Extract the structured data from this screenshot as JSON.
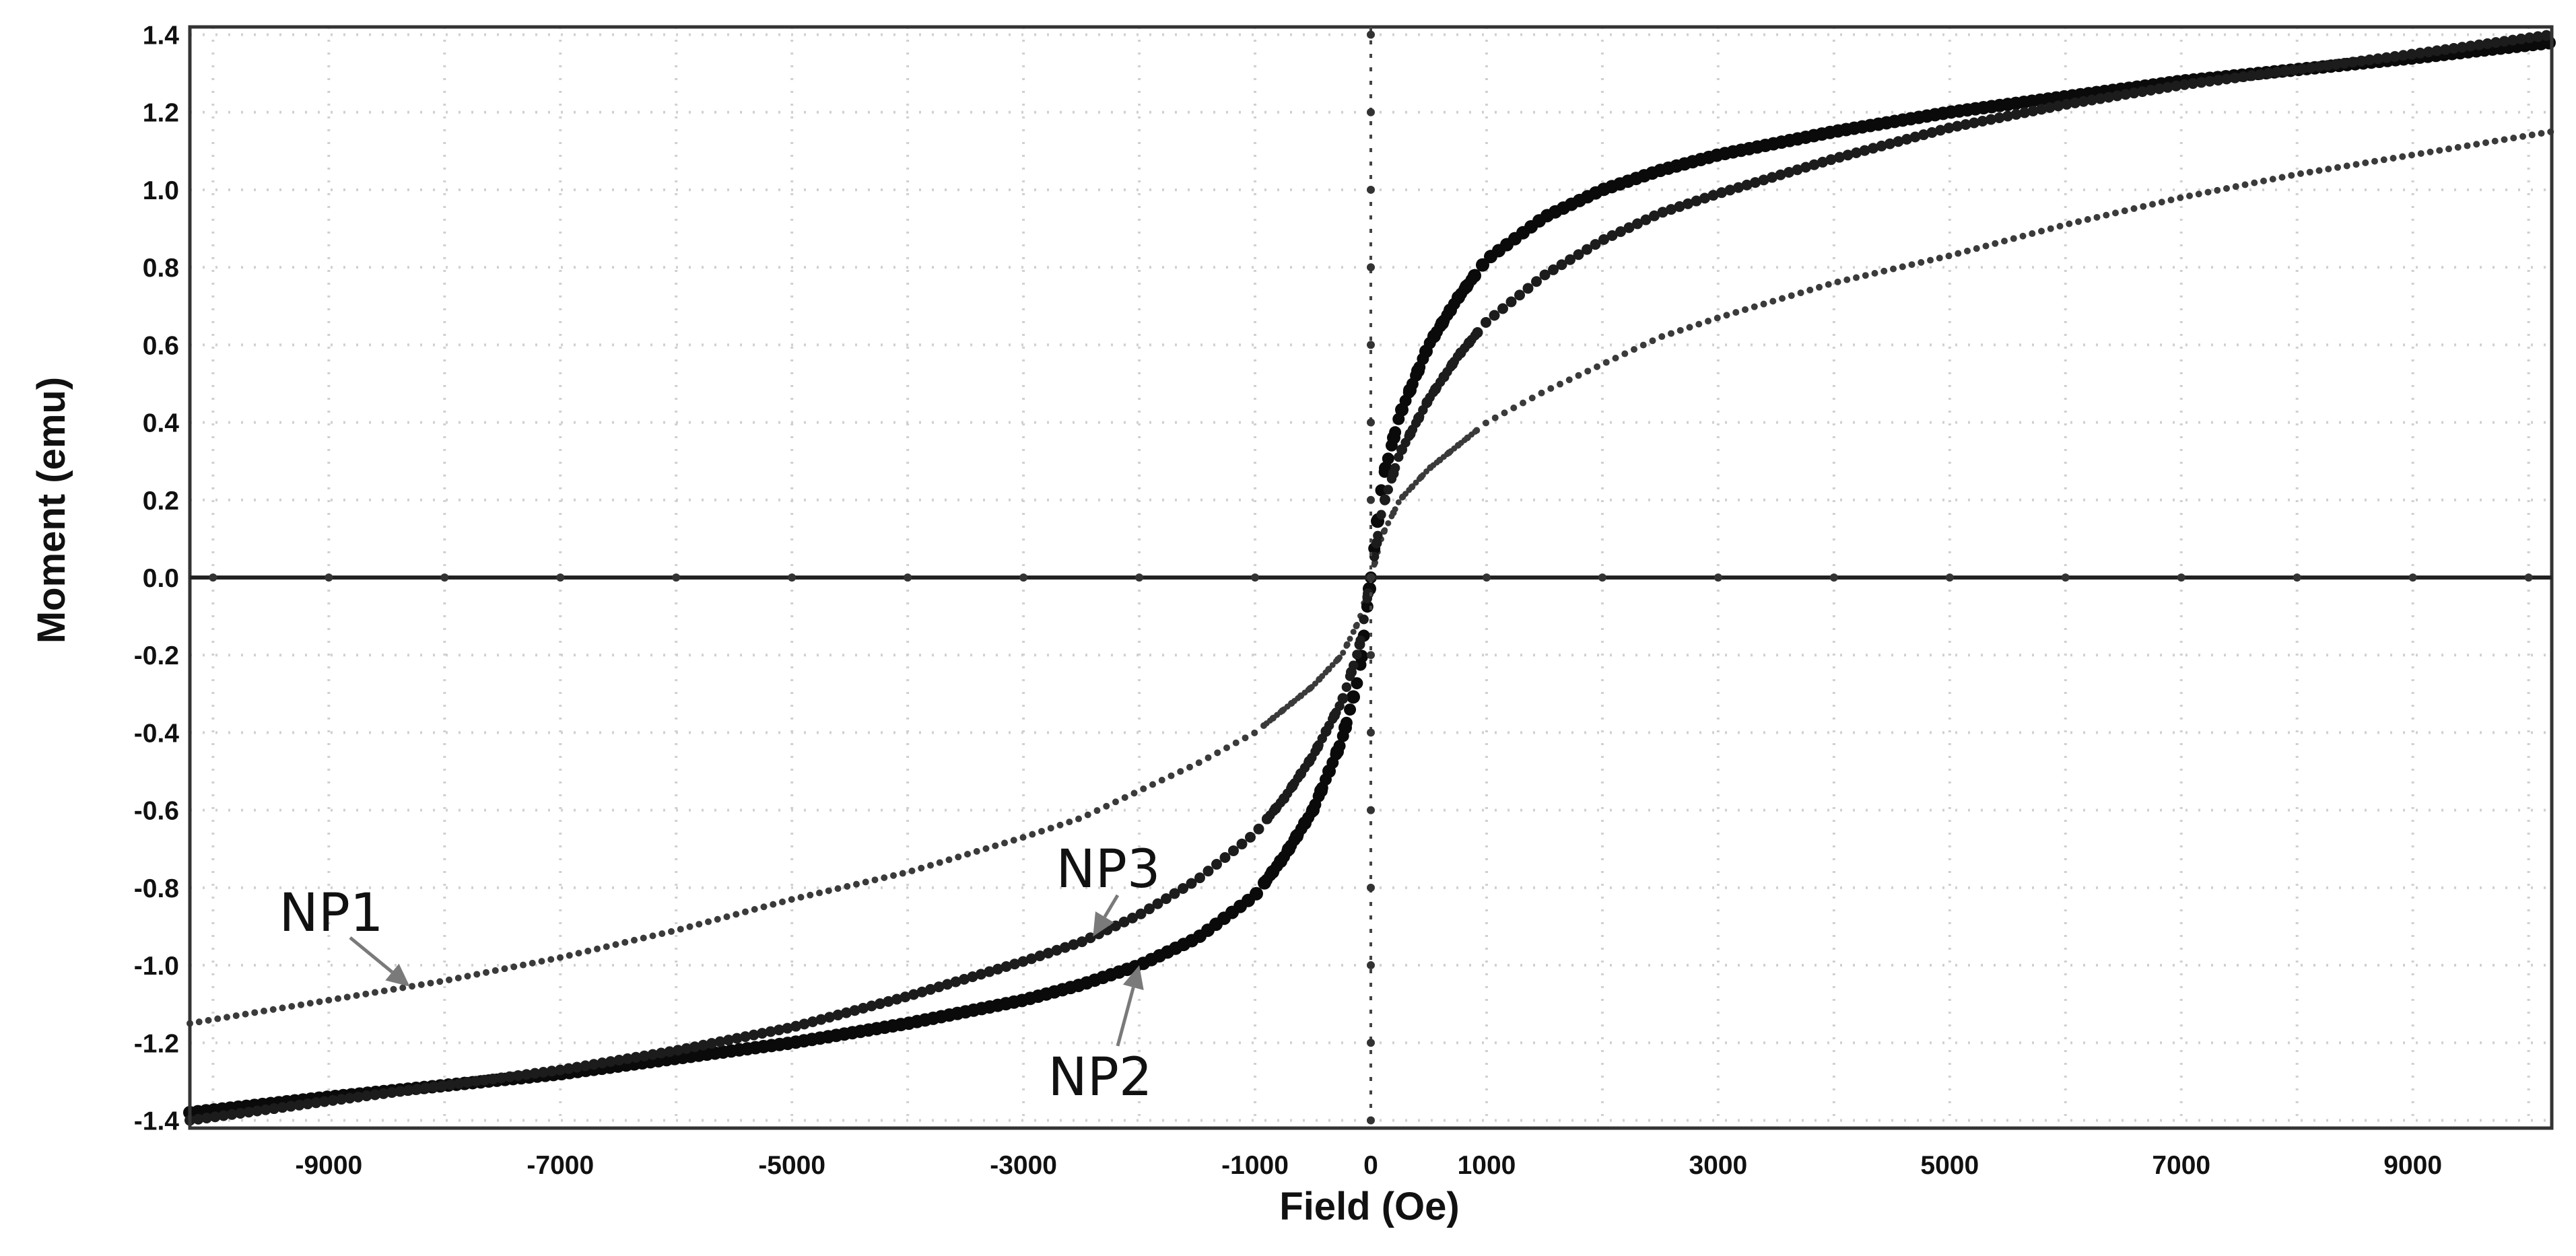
{
  "chart_data": {
    "type": "scatter",
    "title": "",
    "xlabel": "Field (Oe)",
    "ylabel": "Moment (emu)",
    "xlim": [
      -10200,
      10200
    ],
    "ylim": [
      -1.42,
      1.42
    ],
    "xticks": [
      -9000,
      -7000,
      -5000,
      -3000,
      -1000,
      0,
      1000,
      3000,
      5000,
      7000,
      9000
    ],
    "xtick_labels": [
      "-9000",
      "-7000",
      "-5000",
      "-3000",
      "-1000",
      "0",
      "1000",
      "3000",
      "5000",
      "7000",
      "9000"
    ],
    "yticks": [
      1.4,
      1.2,
      1.0,
      0.8,
      0.6,
      0.4,
      0.2,
      0.0,
      -0.2,
      -0.4,
      -0.6,
      -0.8,
      -1.0,
      -1.2,
      -1.4
    ],
    "ytick_labels": [
      "1.4",
      "1.2",
      "1.0",
      "0.8",
      "0.6",
      "0.4",
      "0.2",
      "0.0",
      "-0.2",
      "-0.4",
      "-0.6",
      "-0.8",
      "-1.0",
      "-1.2",
      "-1.4"
    ],
    "grid": true,
    "series": [
      {
        "name": "NP1",
        "x": [
          0,
          100,
          250,
          500,
          750,
          1000,
          1500,
          2000,
          2500,
          3000,
          4000,
          5000,
          6000,
          7000,
          8000,
          9000,
          10200
        ],
        "y": [
          0,
          0.11,
          0.2,
          0.28,
          0.34,
          0.4,
          0.48,
          0.55,
          0.62,
          0.67,
          0.76,
          0.83,
          0.91,
          0.98,
          1.04,
          1.09,
          1.15
        ]
      },
      {
        "name": "NP2",
        "x": [
          0,
          100,
          250,
          500,
          750,
          1000,
          1500,
          2000,
          2500,
          3000,
          4000,
          5000,
          6000,
          7000,
          8000,
          9000,
          10200
        ],
        "y": [
          0,
          0.25,
          0.42,
          0.6,
          0.72,
          0.82,
          0.93,
          1.0,
          1.05,
          1.09,
          1.15,
          1.2,
          1.24,
          1.28,
          1.31,
          1.34,
          1.38
        ]
      },
      {
        "name": "NP3",
        "x": [
          0,
          100,
          250,
          500,
          750,
          1000,
          1500,
          2000,
          2500,
          3000,
          4000,
          5000,
          6000,
          7000,
          8000,
          9000,
          10200
        ],
        "y": [
          0,
          0.18,
          0.32,
          0.46,
          0.57,
          0.66,
          0.78,
          0.87,
          0.94,
          0.99,
          1.08,
          1.16,
          1.22,
          1.27,
          1.31,
          1.35,
          1.4
        ]
      }
    ],
    "annotations": [
      {
        "text": "NP1",
        "series": "NP1",
        "point_x": -8300
      },
      {
        "text": "NP3",
        "series": "NP3",
        "point_x": -2400
      },
      {
        "text": "NP2",
        "series": "NP2",
        "point_x": -2000
      }
    ],
    "colors": {
      "background": "#ffffff",
      "axes": "#333333",
      "grid": "#d0d0d0",
      "data": "#111111",
      "arrow": "#7a7a7a"
    }
  }
}
